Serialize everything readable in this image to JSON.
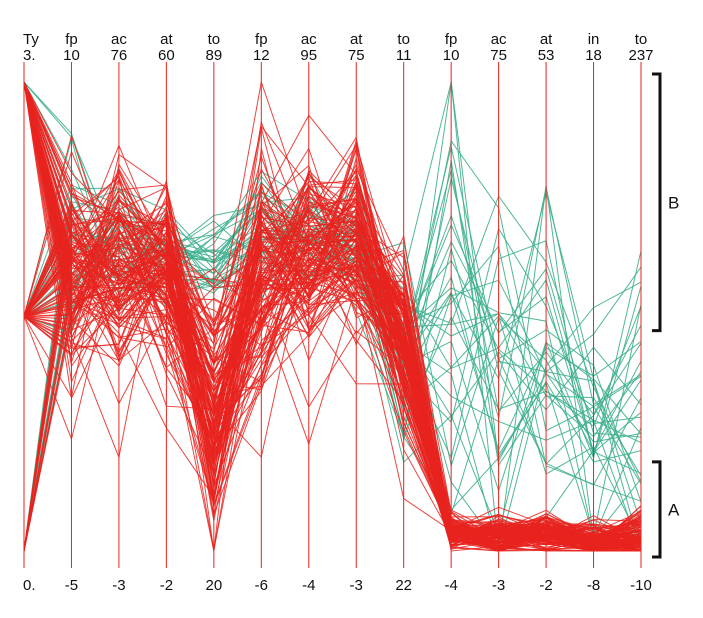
{
  "chart_data": {
    "type": "parallel-coordinates",
    "title": "",
    "axes": [
      {
        "name": "Ty",
        "max": "3.",
        "min": "0."
      },
      {
        "name": "fp",
        "max": "10",
        "min": "-5"
      },
      {
        "name": "ac",
        "max": "76",
        "min": "-3"
      },
      {
        "name": "at",
        "max": "60",
        "min": "-2"
      },
      {
        "name": "to",
        "max": "89",
        "min": "20"
      },
      {
        "name": "fp",
        "max": "12",
        "min": "-6"
      },
      {
        "name": "ac",
        "max": "95",
        "min": "-4"
      },
      {
        "name": "at",
        "max": "75",
        "min": "-3"
      },
      {
        "name": "to",
        "max": "11",
        "min": "22"
      },
      {
        "name": "fp",
        "max": "10",
        "min": "-4"
      },
      {
        "name": "ac",
        "max": "75",
        "min": "-3"
      },
      {
        "name": "at",
        "max": "53",
        "min": "-2"
      },
      {
        "name": "in",
        "max": "18",
        "min": "-8"
      },
      {
        "name": "to",
        "max": "237",
        "min": "-10"
      }
    ],
    "groups": [
      {
        "label": "B",
        "range": [
          0.47,
          1.0
        ]
      },
      {
        "label": "A",
        "range": [
          0.0,
          0.19
        ]
      }
    ],
    "series": [
      {
        "color": "#e8231e",
        "count": 140,
        "profile": [
          0.5,
          0.58,
          0.6,
          0.6,
          0.27,
          0.59,
          0.63,
          0.65,
          0.45,
          0.04,
          0.03,
          0.04,
          0.02,
          0.03
        ],
        "spread": [
          0.5,
          0.12,
          0.12,
          0.1,
          0.14,
          0.13,
          0.1,
          0.1,
          0.09,
          0.02,
          0.02,
          0.02,
          0.02,
          0.03
        ]
      },
      {
        "color": "#3daf8d",
        "count": 35,
        "profile": [
          0.4,
          0.66,
          0.67,
          0.64,
          0.62,
          0.68,
          0.67,
          0.65,
          0.45,
          0.5,
          0.35,
          0.37,
          0.3,
          0.3
        ],
        "spread": [
          0.45,
          0.08,
          0.08,
          0.06,
          0.05,
          0.07,
          0.06,
          0.06,
          0.12,
          0.25,
          0.18,
          0.2,
          0.13,
          0.18
        ]
      }
    ],
    "colors": {
      "axis": "#e8231e",
      "line_red": "#e8231e",
      "line_green": "#3daf8d",
      "bracket": "#111111"
    }
  }
}
